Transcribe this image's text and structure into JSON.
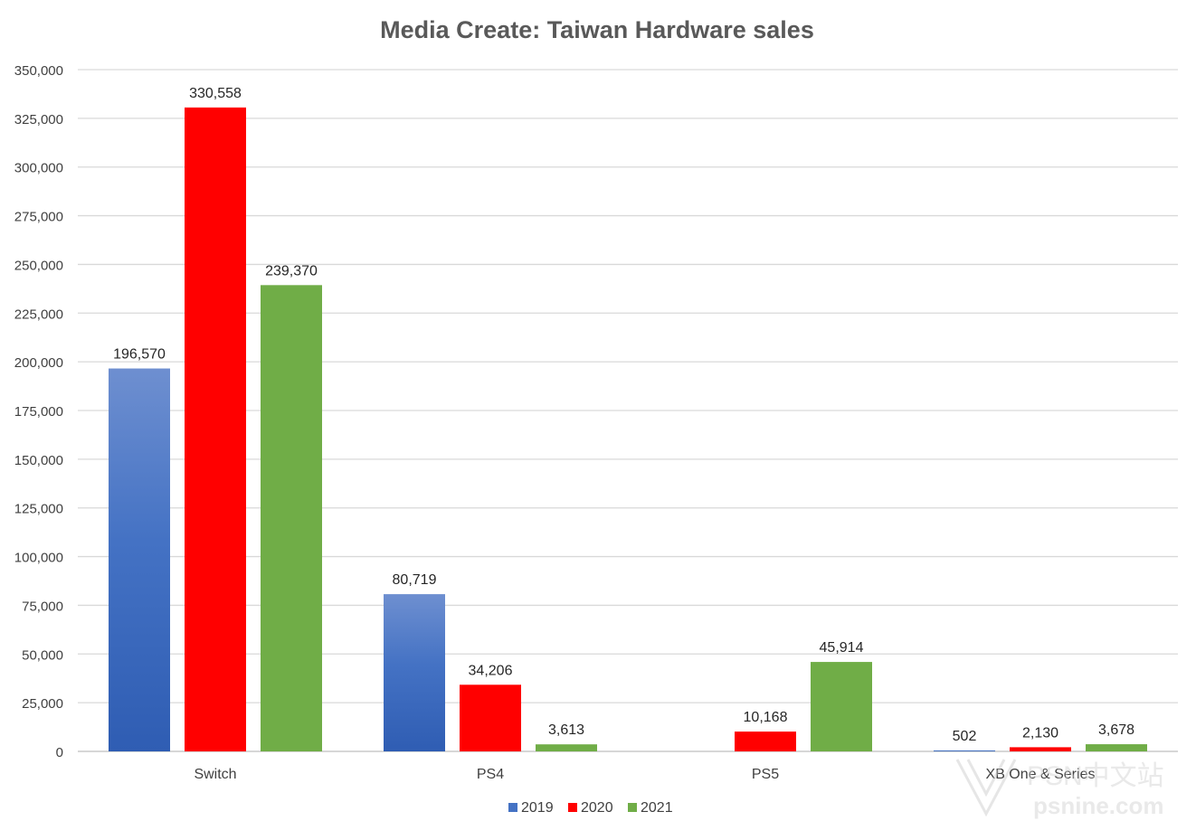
{
  "chart_data": {
    "type": "bar",
    "title": "Media Create: Taiwan Hardware sales",
    "xlabel": "",
    "ylabel": "",
    "categories": [
      "Switch",
      "PS4",
      "PS5",
      "XB One & Series"
    ],
    "series": [
      {
        "name": "2019",
        "color": "#4472C4",
        "values": [
          196570,
          80719,
          null,
          502
        ],
        "labels": [
          "196,570",
          "80,719",
          "",
          "502"
        ]
      },
      {
        "name": "2020",
        "color": "#FF0000",
        "values": [
          330558,
          34206,
          10168,
          2130
        ],
        "labels": [
          "330,558",
          "34,206",
          "10,168",
          "2,130"
        ]
      },
      {
        "name": "2021",
        "color": "#70AD47",
        "values": [
          239370,
          3613,
          45914,
          3678
        ],
        "labels": [
          "239,370",
          "3,613",
          "45,914",
          "3,678"
        ]
      }
    ],
    "ylim": [
      0,
      350000
    ],
    "yticks": [
      "0",
      "25,000",
      "50,000",
      "75,000",
      "100,000",
      "125,000",
      "150,000",
      "175,000",
      "200,000",
      "225,000",
      "250,000",
      "275,000",
      "300,000",
      "325,000",
      "350,000"
    ],
    "grid": true,
    "legend_position": "bottom"
  },
  "watermark": {
    "text": "PSN中文站",
    "url": "psnine.com"
  }
}
